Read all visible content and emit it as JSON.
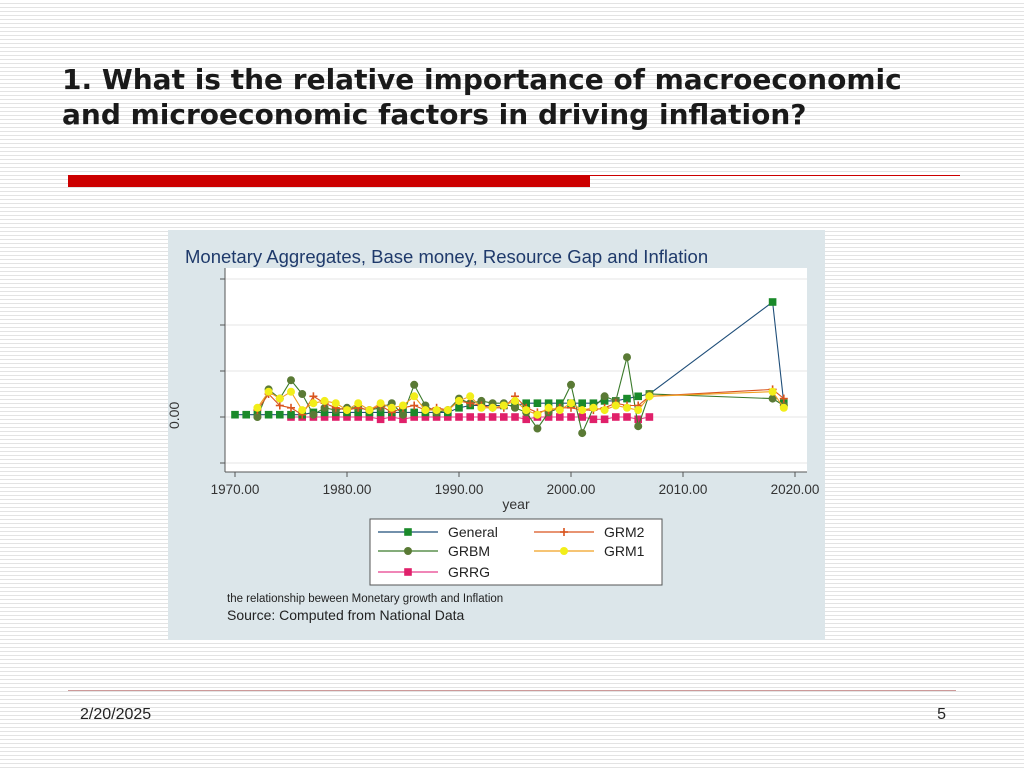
{
  "slide": {
    "title": "1. What is the relative importance of macroeconomic and microeconomic factors in driving inflation?",
    "date": "2/20/2025",
    "page_number": "5"
  },
  "colors": {
    "title_bar": "#cc0000",
    "panel_bg": "#dce6ea",
    "plot_bg": "#ffffff",
    "chart_title": "#1f3a6b"
  },
  "chart_data": {
    "type": "line",
    "title": "Monetary Aggregates, Base money, Resource Gap  and Inflation",
    "xlabel": "year",
    "ylabel": "",
    "x_ticks": [
      "1970.00",
      "1980.00",
      "1990.00",
      "2000.00",
      "2010.00",
      "2020.00"
    ],
    "y_tick_label": "0.00",
    "xlim": [
      1969,
      2022
    ],
    "ylim": [
      -10,
      42
    ],
    "grid": true,
    "legend_position": "bottom",
    "note": "the relationship beween Monetary growth and Inflation",
    "source": "Source: Computed from National Data",
    "series": [
      {
        "name": "General",
        "color": "#1f4e79",
        "marker": "square",
        "marker_color": "#1a8a2a",
        "x": [
          1970,
          1971,
          1972,
          1973,
          1974,
          1975,
          1976,
          1977,
          1978,
          1979,
          1980,
          1981,
          1982,
          1983,
          1984,
          1985,
          1986,
          1987,
          1988,
          1989,
          1990,
          1991,
          1992,
          1993,
          1994,
          1995,
          1996,
          1997,
          1998,
          1999,
          2000,
          2001,
          2002,
          2003,
          2004,
          2005,
          2006,
          2007,
          2018,
          2019
        ],
        "y": [
          0.5,
          0.5,
          0.5,
          0.5,
          0.5,
          0.5,
          0.5,
          1,
          1,
          1,
          1,
          1,
          1,
          1,
          1,
          1,
          1,
          1,
          1,
          1,
          2,
          2.5,
          2.5,
          2.5,
          2.5,
          2.5,
          3,
          3,
          3,
          3,
          3,
          3,
          3,
          3.5,
          3.5,
          4,
          4.5,
          5,
          25,
          3
        ]
      },
      {
        "name": "GRBM",
        "color": "#3a7a2a",
        "marker": "circle",
        "marker_color": "#5a7a35",
        "x": [
          1972,
          1973,
          1974,
          1975,
          1976,
          1977,
          1978,
          1979,
          1980,
          1981,
          1982,
          1983,
          1984,
          1985,
          1986,
          1987,
          1988,
          1989,
          1990,
          1991,
          1992,
          1993,
          1994,
          1995,
          1996,
          1997,
          1998,
          1999,
          2000,
          2001,
          2002,
          2003,
          2004,
          2005,
          2006,
          2007,
          2018,
          2019
        ],
        "y": [
          0,
          6,
          4,
          8,
          5,
          0.5,
          2,
          1.5,
          2,
          2,
          1.5,
          2,
          3,
          0.5,
          7,
          2.5,
          1,
          1.5,
          4,
          3,
          3.5,
          3,
          3,
          2,
          1,
          -2.5,
          1,
          2,
          7,
          -3.5,
          2,
          4.5,
          3.5,
          13,
          -2,
          5,
          4,
          2.5
        ]
      },
      {
        "name": "GRRG",
        "color": "#e83e8c",
        "marker": "square",
        "marker_color": "#e0206a",
        "x": [
          1975,
          1976,
          1977,
          1978,
          1979,
          1980,
          1981,
          1982,
          1983,
          1984,
          1985,
          1986,
          1987,
          1988,
          1989,
          1990,
          1991,
          1992,
          1993,
          1994,
          1995,
          1996,
          1997,
          1998,
          1999,
          2000,
          2001,
          2002,
          2003,
          2004,
          2005,
          2006,
          2007
        ],
        "y": [
          0,
          0,
          0,
          0,
          0,
          0,
          0,
          0,
          -0.5,
          0,
          -0.5,
          0,
          0,
          0,
          0,
          0,
          0,
          0,
          0,
          0,
          0,
          -0.5,
          0,
          0,
          0,
          0,
          0,
          -0.5,
          -0.5,
          0,
          0,
          -0.5,
          0
        ]
      },
      {
        "name": "GRM2",
        "color": "#d9541e",
        "marker": "plus",
        "marker_color": "#d9541e",
        "x": [
          1972,
          1973,
          1974,
          1975,
          1976,
          1977,
          1978,
          1979,
          1980,
          1981,
          1982,
          1983,
          1984,
          1985,
          1986,
          1987,
          1988,
          1989,
          1990,
          1991,
          1992,
          1993,
          1994,
          1995,
          1996,
          1997,
          1998,
          1999,
          2000,
          2001,
          2002,
          2003,
          2004,
          2005,
          2006,
          2007,
          2018,
          2019
        ],
        "y": [
          1.5,
          5,
          2.5,
          2,
          0.5,
          4.5,
          3,
          2,
          1.5,
          2,
          1.5,
          2.5,
          1,
          2,
          2.5,
          1.5,
          2,
          1.5,
          3.5,
          3,
          2.5,
          2,
          2,
          4.5,
          2,
          1,
          1.5,
          2,
          2,
          1.5,
          1.5,
          2,
          3,
          2.5,
          2.5,
          4.5,
          6,
          4
        ]
      },
      {
        "name": "GRM1",
        "color": "#f0a020",
        "marker": "circle",
        "marker_color": "#f2ee1a",
        "x": [
          1972,
          1973,
          1974,
          1975,
          1976,
          1977,
          1978,
          1979,
          1980,
          1981,
          1982,
          1983,
          1984,
          1985,
          1986,
          1987,
          1988,
          1989,
          1990,
          1991,
          1992,
          1993,
          1994,
          1995,
          1996,
          1997,
          1998,
          1999,
          2000,
          2001,
          2002,
          2003,
          2004,
          2005,
          2006,
          2007,
          2018,
          2019
        ],
        "y": [
          2,
          5.5,
          4,
          5.5,
          1.5,
          3,
          3.5,
          3,
          1.5,
          3,
          1.5,
          3,
          2,
          2.5,
          4.5,
          1.5,
          1.5,
          1.5,
          3.5,
          4.5,
          2,
          2,
          2.5,
          3.5,
          1.5,
          0.5,
          2,
          1.5,
          3,
          1.5,
          2,
          1.5,
          2.5,
          2,
          1.5,
          4.5,
          5.5,
          2
        ]
      }
    ]
  }
}
